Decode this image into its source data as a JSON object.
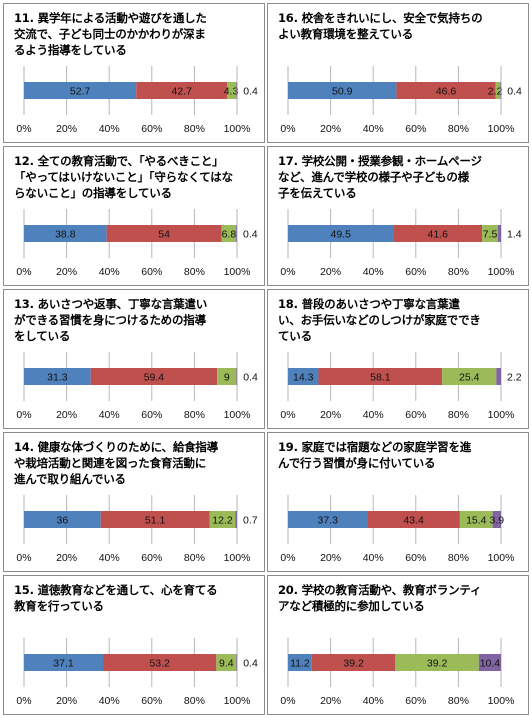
{
  "colors": {
    "s1": "#4f81bd",
    "s2": "#c0504d",
    "s3": "#9bbb59",
    "s4": "#8064a2"
  },
  "axis_ticks": [
    "0%",
    "20%",
    "40%",
    "60%",
    "80%",
    "100%"
  ],
  "chart_data": [
    {
      "type": "bar",
      "orientation": "horizontal-stacked",
      "title": "11. 異学年による活動や遊びを通した\n交流で、子ども同士のかかわりが深ま\nるよう指導をしている",
      "values": [
        52.7,
        42.7,
        4.3,
        0.4
      ],
      "xlim": [
        0,
        100
      ]
    },
    {
      "type": "bar",
      "orientation": "horizontal-stacked",
      "title": "12. 全ての教育活動で、「やるべきこと」\n「やってはいけないこと」「守らなくてはな\nらないこと」の指導をしている",
      "values": [
        38.8,
        54,
        6.8,
        0.4
      ],
      "xlim": [
        0,
        100
      ]
    },
    {
      "type": "bar",
      "orientation": "horizontal-stacked",
      "title": "13. あいさつや返事、丁寧な言葉遣い\nができる習慣を身につけるための指導\nをしている",
      "values": [
        31.3,
        59.4,
        9,
        0.4
      ],
      "xlim": [
        0,
        100
      ]
    },
    {
      "type": "bar",
      "orientation": "horizontal-stacked",
      "title": "14. 健康な体づくりのために、給食指導\nや栽培活動と関連を図った食育活動に\n進んで取り組んでいる",
      "values": [
        36,
        51.1,
        12.2,
        0.7
      ],
      "xlim": [
        0,
        100
      ]
    },
    {
      "type": "bar",
      "orientation": "horizontal-stacked",
      "title": "15. 道徳教育などを通して、心を育てる\n教育を行っている",
      "values": [
        37.1,
        53.2,
        9.4,
        0.4
      ],
      "xlim": [
        0,
        100
      ]
    },
    {
      "type": "bar",
      "orientation": "horizontal-stacked",
      "title": "16. 校舎をきれいにし、安全で気持ちの\nよい教育環境を整えている",
      "values": [
        50.9,
        46.6,
        2.2,
        0.4
      ],
      "xlim": [
        0,
        100
      ]
    },
    {
      "type": "bar",
      "orientation": "horizontal-stacked",
      "title": "17. 学校公開・授業参観・ホームページ\nなど、進んで学校の様子や子どもの様\n子を伝えている",
      "values": [
        49.5,
        41.6,
        7.5,
        1.4
      ],
      "xlim": [
        0,
        100
      ]
    },
    {
      "type": "bar",
      "orientation": "horizontal-stacked",
      "title": "18. 普段のあいさつや丁寧な言葉遣\nい、お手伝いなどのしつけが家庭ででき\nている",
      "values": [
        14.3,
        58.1,
        25.4,
        2.2
      ],
      "xlim": [
        0,
        100
      ]
    },
    {
      "type": "bar",
      "orientation": "horizontal-stacked",
      "title": "19. 家庭では宿題などの家庭学習を進\nんで行う習慣が身に付いている",
      "values": [
        37.3,
        43.4,
        15.4,
        3.9
      ],
      "xlim": [
        0,
        100
      ]
    },
    {
      "type": "bar",
      "orientation": "horizontal-stacked",
      "title": "20. 学校の教育活動や、教育ボランティ\nアなど積極的に参加している",
      "values": [
        11.2,
        39.2,
        39.2,
        10.4
      ],
      "xlim": [
        0,
        100
      ]
    }
  ]
}
